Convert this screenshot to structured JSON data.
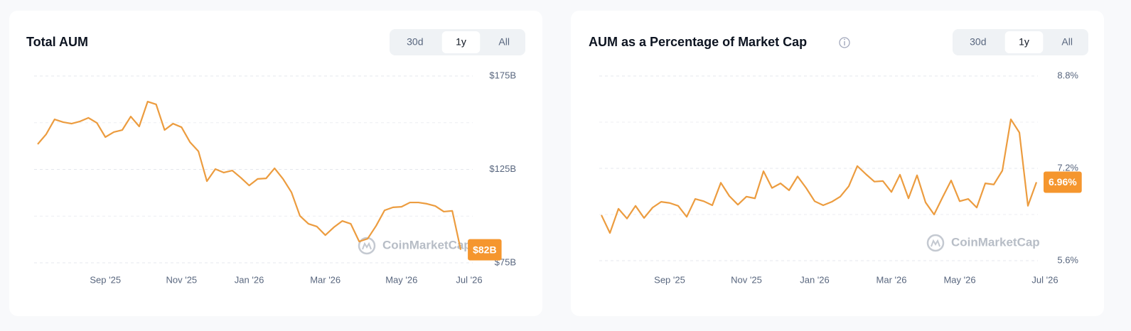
{
  "chart_data": [
    {
      "type": "line",
      "title": "Total AUM",
      "ranges": [
        "30d",
        "1y",
        "All"
      ],
      "selected_range": "1y",
      "watermark": "CoinMarketCap",
      "categories": [
        null,
        null,
        null,
        null,
        null,
        null,
        null,
        null,
        "Sep '25",
        null,
        null,
        null,
        null,
        null,
        null,
        null,
        null,
        "Nov '25",
        null,
        null,
        null,
        null,
        null,
        null,
        null,
        "Jan '26",
        null,
        null,
        null,
        null,
        null,
        null,
        null,
        null,
        "Mar '26",
        null,
        null,
        null,
        null,
        null,
        null,
        null,
        null,
        "May '26",
        null,
        null,
        null,
        null,
        null,
        null,
        null,
        "Jul '26"
      ],
      "values": [
        138.5,
        143.8,
        151.8,
        150.3,
        149.5,
        150.7,
        152.6,
        149.9,
        142.3,
        145.0,
        146.1,
        153.3,
        148.0,
        161.3,
        159.8,
        146.1,
        149.5,
        147.6,
        139.6,
        134.7,
        118.7,
        125.2,
        123.3,
        124.4,
        120.6,
        116.4,
        119.9,
        120.2,
        125.6,
        119.9,
        112.7,
        100.1,
        95.9,
        94.4,
        89.8,
        94.0,
        97.4,
        95.9,
        86.4,
        87.9,
        94.8,
        103.1,
        104.7,
        105.0,
        107.3,
        107.3,
        106.6,
        105.4,
        102.4,
        102.8,
        82,
        null
      ],
      "value_labels": [
        null,
        null,
        null,
        null,
        null,
        null,
        null,
        null,
        null,
        null,
        null,
        null,
        null,
        null,
        null,
        null,
        null,
        null,
        null,
        null,
        null,
        null,
        null,
        null,
        null,
        null,
        null,
        null,
        null,
        null,
        null,
        null,
        null,
        null,
        null,
        null,
        null,
        null,
        null,
        null,
        null,
        null,
        null,
        null,
        null,
        null,
        null,
        null,
        null,
        null,
        "$82B",
        null
      ],
      "color": "#ec9c3f",
      "badge_color": "#f5962e",
      "ylim": [
        75,
        175
      ],
      "yticks": [
        {
          "value": 75,
          "label": "$75B"
        },
        {
          "value": 125,
          "label": "$125B"
        },
        {
          "value": 175,
          "label": "$175B"
        }
      ],
      "grid": true
    },
    {
      "type": "line",
      "title": "AUM as a Percentage of Market Cap",
      "ranges": [
        "30d",
        "1y",
        "All"
      ],
      "selected_range": "1y",
      "watermark": "CoinMarketCap",
      "categories": [
        null,
        null,
        null,
        null,
        null,
        null,
        null,
        null,
        "Sep '25",
        null,
        null,
        null,
        null,
        null,
        null,
        null,
        null,
        "Nov '25",
        null,
        null,
        null,
        null,
        null,
        null,
        null,
        "Jan '26",
        null,
        null,
        null,
        null,
        null,
        null,
        null,
        null,
        "Mar '26",
        null,
        null,
        null,
        null,
        null,
        null,
        null,
        "May '26",
        null,
        null,
        null,
        null,
        null,
        null,
        null,
        null,
        null,
        "Jul '26"
      ],
      "values": [
        6.39,
        6.08,
        6.5,
        6.33,
        6.55,
        6.34,
        6.52,
        6.62,
        6.6,
        6.55,
        6.36,
        6.67,
        6.63,
        6.56,
        6.95,
        6.72,
        6.57,
        6.71,
        6.68,
        7.15,
        6.86,
        6.94,
        6.82,
        7.06,
        6.86,
        6.63,
        6.56,
        6.62,
        6.71,
        6.89,
        7.24,
        7.1,
        6.97,
        6.98,
        6.79,
        7.09,
        6.68,
        7.08,
        6.61,
        6.4,
        6.7,
        6.99,
        6.63,
        6.67,
        6.52,
        6.94,
        6.92,
        7.16,
        8.05,
        7.82,
        6.55,
        6.96,
        null
      ],
      "value_labels": [
        null,
        null,
        null,
        null,
        null,
        null,
        null,
        null,
        null,
        null,
        null,
        null,
        null,
        null,
        null,
        null,
        null,
        null,
        null,
        null,
        null,
        null,
        null,
        null,
        null,
        null,
        null,
        null,
        null,
        null,
        null,
        null,
        null,
        null,
        null,
        null,
        null,
        null,
        null,
        null,
        null,
        null,
        null,
        null,
        null,
        null,
        null,
        null,
        null,
        null,
        null,
        "6.96%",
        null
      ],
      "color": "#ec9c3f",
      "badge_color": "#f5962e",
      "ylim": [
        5.6,
        8.8
      ],
      "yticks": [
        {
          "value": 5.6,
          "label": "5.6%"
        },
        {
          "value": 7.2,
          "label": "7.2%"
        },
        {
          "value": 8.8,
          "label": "8.8%"
        }
      ],
      "grid": true
    }
  ]
}
